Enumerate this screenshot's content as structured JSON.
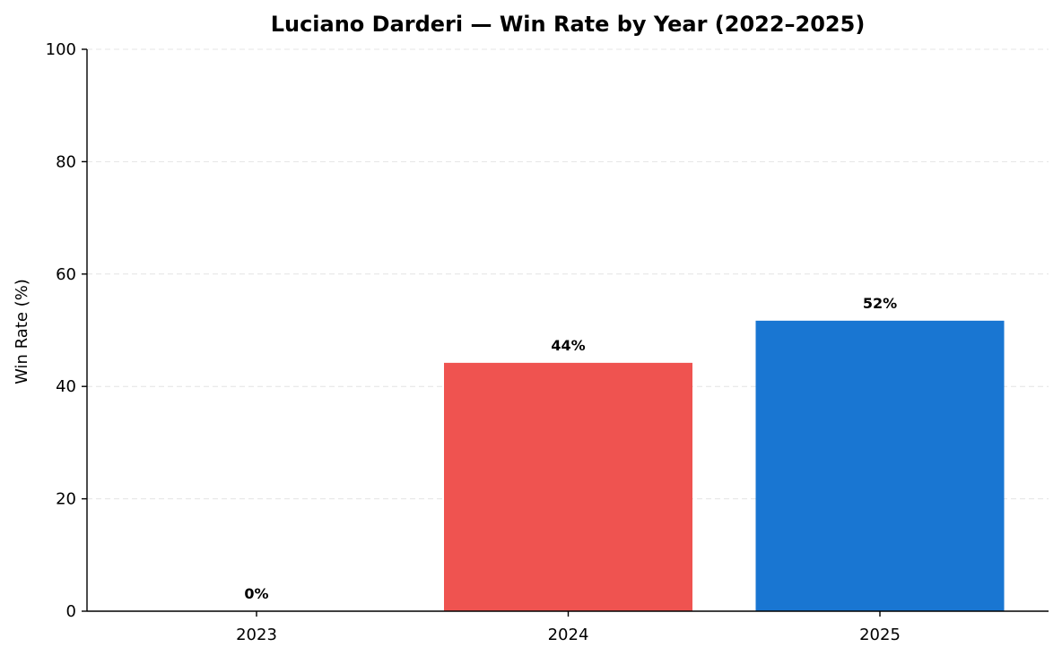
{
  "chart_data": {
    "type": "bar",
    "title": "Luciano Darderi — Win Rate by Year (2022–2025)",
    "xlabel": "",
    "ylabel": "Win Rate (%)",
    "ylim": [
      0,
      100
    ],
    "yticks": [
      0,
      20,
      40,
      60,
      80,
      100
    ],
    "grid": true,
    "categories": [
      "2023",
      "2024",
      "2025"
    ],
    "values": [
      0,
      44.2,
      51.7
    ],
    "data_labels": [
      "0%",
      "44%",
      "52%"
    ],
    "colors": [
      "#1976d2",
      "#ef5350",
      "#1976d2"
    ]
  }
}
